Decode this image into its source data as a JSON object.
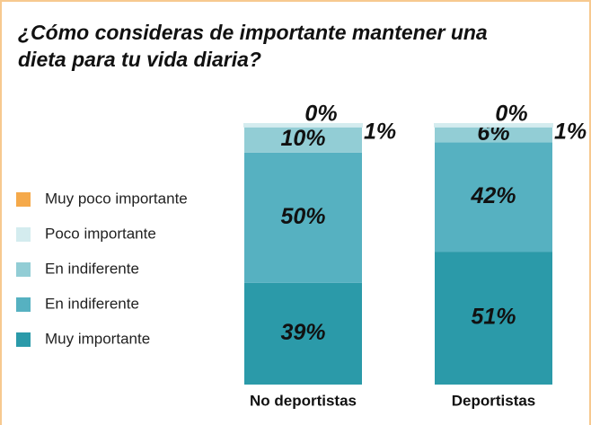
{
  "chart_data": {
    "type": "stacked_bar",
    "title": [
      "¿Cómo consideras de importante mantener una",
      "dieta para tu vida diaria?"
    ],
    "categories": [
      "No deportistas",
      "Deportistas"
    ],
    "series": [
      {
        "name": "Muy importante",
        "color": "#2b9aa9",
        "values": [
          39,
          51
        ],
        "value_labels": [
          "39%",
          "51%"
        ]
      },
      {
        "name": "En indiferente",
        "color": "#56b1c1",
        "values": [
          50,
          42
        ],
        "value_labels": [
          "50%",
          "42%"
        ]
      },
      {
        "name": "En indiferente",
        "color": "#92cdd5",
        "values": [
          10,
          6
        ],
        "value_labels": [
          "10%",
          "6%"
        ]
      },
      {
        "name": "Poco importante",
        "color": "#d4ecef",
        "values": [
          1,
          1
        ],
        "value_labels": [
          "1%",
          "1%"
        ]
      },
      {
        "name": "Muy poco importante",
        "color": "#f5a94a",
        "values": [
          0,
          0
        ],
        "value_labels": [
          "0%",
          "0%"
        ]
      }
    ]
  }
}
